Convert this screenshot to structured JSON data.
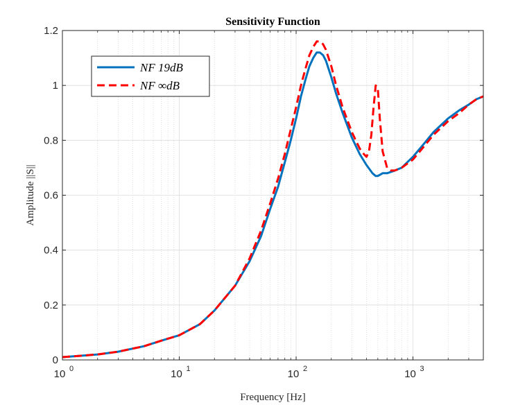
{
  "chart_data": {
    "type": "line",
    "title": "Sensitivity Function",
    "xlabel": "Frequency [Hz]",
    "ylabel": "Amplitude ||S||",
    "xscale": "log",
    "xlim": [
      1,
      4000
    ],
    "ylim": [
      0,
      1.2
    ],
    "grid": true,
    "legend_position": "top-left",
    "x_ticks": [
      {
        "value": 1,
        "base": "10",
        "exp": "0"
      },
      {
        "value": 10,
        "base": "10",
        "exp": "1"
      },
      {
        "value": 100,
        "base": "10",
        "exp": "2"
      },
      {
        "value": 1000,
        "base": "10",
        "exp": "3"
      }
    ],
    "y_ticks": [
      {
        "value": 0,
        "label": "0"
      },
      {
        "value": 0.2,
        "label": "0.2"
      },
      {
        "value": 0.4,
        "label": "0.4"
      },
      {
        "value": 0.6,
        "label": "0.6"
      },
      {
        "value": 0.8,
        "label": "0.8"
      },
      {
        "value": 1.0,
        "label": "1"
      },
      {
        "value": 1.2,
        "label": "1.2"
      }
    ],
    "series": [
      {
        "name": "NF 19dB",
        "color": "#0072BD",
        "style": "solid",
        "x": [
          1,
          2,
          3,
          5,
          7,
          10,
          15,
          20,
          30,
          40,
          50,
          60,
          70,
          80,
          90,
          100,
          110,
          120,
          130,
          140,
          150,
          160,
          170,
          180,
          200,
          220,
          250,
          300,
          350,
          400,
          450,
          480,
          500,
          550,
          600,
          700,
          800,
          1000,
          1200,
          1500,
          2000,
          2500,
          3000,
          3500,
          4000
        ],
        "y": [
          0.01,
          0.02,
          0.03,
          0.05,
          0.07,
          0.09,
          0.13,
          0.18,
          0.27,
          0.36,
          0.45,
          0.55,
          0.63,
          0.72,
          0.8,
          0.88,
          0.96,
          1.02,
          1.07,
          1.1,
          1.12,
          1.12,
          1.11,
          1.09,
          1.03,
          0.97,
          0.9,
          0.81,
          0.75,
          0.71,
          0.68,
          0.67,
          0.67,
          0.68,
          0.68,
          0.69,
          0.7,
          0.74,
          0.78,
          0.83,
          0.88,
          0.91,
          0.93,
          0.95,
          0.96
        ]
      },
      {
        "name": "NF ∞dB",
        "color": "#FF0000",
        "style": "dashed",
        "x": [
          1,
          2,
          3,
          5,
          7,
          10,
          15,
          20,
          30,
          40,
          50,
          60,
          70,
          80,
          90,
          100,
          110,
          120,
          130,
          140,
          150,
          160,
          170,
          180,
          200,
          220,
          250,
          300,
          350,
          380,
          400,
          420,
          440,
          460,
          480,
          500,
          520,
          550,
          600,
          650,
          700,
          800,
          1000,
          1200,
          1500,
          2000,
          2500,
          3000,
          3500,
          4000
        ],
        "y": [
          0.01,
          0.02,
          0.03,
          0.05,
          0.07,
          0.09,
          0.13,
          0.18,
          0.27,
          0.37,
          0.47,
          0.57,
          0.66,
          0.75,
          0.84,
          0.92,
          1.0,
          1.06,
          1.11,
          1.14,
          1.16,
          1.16,
          1.15,
          1.13,
          1.07,
          1.0,
          0.92,
          0.83,
          0.77,
          0.75,
          0.74,
          0.76,
          0.82,
          0.92,
          1.0,
          0.99,
          0.88,
          0.76,
          0.7,
          0.69,
          0.69,
          0.7,
          0.73,
          0.77,
          0.82,
          0.87,
          0.9,
          0.93,
          0.95,
          0.96
        ]
      }
    ],
    "legend": [
      {
        "label": "NF 19dB",
        "color": "#0072BD",
        "style": "solid"
      },
      {
        "label": "NF ∞dB",
        "color": "#FF0000",
        "style": "dashed"
      }
    ]
  }
}
